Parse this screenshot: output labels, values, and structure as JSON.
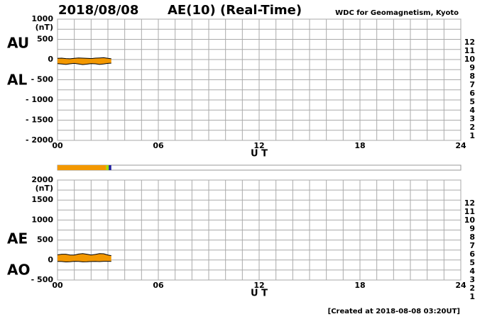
{
  "header": {
    "date": "2018/08/08",
    "title": "AE(10) (Real-Time)",
    "source": "WDC for Geomagnetism, Kyoto"
  },
  "chart_data": [
    {
      "type": "range",
      "y_unit": "(nT)",
      "upper_label": "AU",
      "lower_label": "AL",
      "x_label": "U T",
      "fill_color": "#f39800",
      "x": [
        0,
        0.25,
        0.5,
        0.75,
        1,
        1.25,
        1.5,
        1.75,
        2,
        2.25,
        2.5,
        2.75,
        3,
        3.2
      ],
      "series": [
        {
          "name": "AU",
          "color": "#000000",
          "values": [
            30,
            35,
            25,
            20,
            30,
            40,
            35,
            30,
            25,
            35,
            40,
            45,
            30,
            20
          ]
        },
        {
          "name": "AL",
          "color": "#000000",
          "values": [
            -100,
            -110,
            -120,
            -105,
            -95,
            -110,
            -125,
            -115,
            -100,
            -105,
            -120,
            -110,
            -95,
            -90
          ]
        }
      ],
      "xlim": [
        0,
        24
      ],
      "xticks": [
        {
          "value": 0,
          "label": "00"
        },
        {
          "value": 6,
          "label": "06"
        },
        12,
        18,
        24
      ],
      "ylim": [
        -2000,
        1000
      ],
      "yticks": [
        {
          "value": -2000,
          "label": "- 2000"
        },
        {
          "value": -1500,
          "label": "- 1500"
        },
        {
          "value": -1000,
          "label": "- 1000"
        },
        {
          "value": -500,
          "label": "- 500"
        },
        0,
        500,
        1000
      ],
      "grid": true
    },
    {
      "type": "range",
      "y_unit": "(nT)",
      "upper_label": "AE",
      "lower_label": "AO",
      "x_label": "U T",
      "fill_color": "#f39800",
      "x": [
        0,
        0.25,
        0.5,
        0.75,
        1,
        1.25,
        1.5,
        1.75,
        2,
        2.25,
        2.5,
        2.75,
        3,
        3.2
      ],
      "series": [
        {
          "name": "AE",
          "color": "#000000",
          "values": [
            130,
            145,
            145,
            125,
            125,
            150,
            160,
            145,
            125,
            140,
            160,
            155,
            125,
            110
          ]
        },
        {
          "name": "AO",
          "color": "#000000",
          "values": [
            -35,
            -37.5,
            -47.5,
            -42.5,
            -32.5,
            -35,
            -45,
            -42.5,
            -37.5,
            -35,
            -40,
            -32.5,
            -32.5,
            -35
          ]
        }
      ],
      "xlim": [
        0,
        24
      ],
      "xticks": [
        {
          "value": 0,
          "label": "00"
        },
        {
          "value": 6,
          "label": "06"
        },
        12,
        18,
        24
      ],
      "ylim": [
        -500,
        2000
      ],
      "yticks": [
        {
          "value": -500,
          "label": "- 500"
        },
        0,
        500,
        1000,
        1500,
        2000
      ],
      "grid": true
    }
  ],
  "station_bar": {
    "starts": [
      0,
      2.9,
      3.05
    ],
    "ends": [
      2.9,
      3.05,
      3.2
    ],
    "counts": [
      10,
      8,
      5
    ]
  },
  "station_legend": [
    {
      "label": "12",
      "color": "#e8196e"
    },
    {
      "label": "11",
      "color": "#e60000"
    },
    {
      "label": "10",
      "color": "#f39800"
    },
    {
      "label": "9",
      "color": "#ffff00"
    },
    {
      "label": "8",
      "color": "#a0e000"
    },
    {
      "label": "7",
      "color": "#40d8ff"
    },
    {
      "label": "6",
      "color": "#0070ff"
    },
    {
      "label": "5",
      "color": "#2020a0"
    },
    {
      "label": "4",
      "color": "#cc00cc"
    },
    {
      "label": "3",
      "color": "#000000"
    },
    {
      "label": "2",
      "color": "#808080"
    },
    {
      "label": "1",
      "color": "#d0d0d0"
    }
  ],
  "footer": "[Created at 2018-08-08 03:20UT]"
}
